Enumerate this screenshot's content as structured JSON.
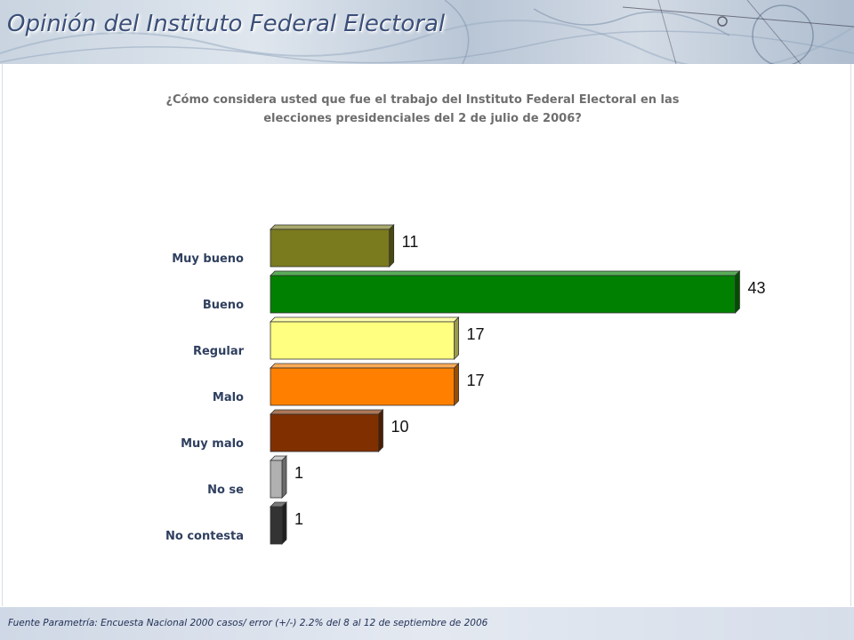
{
  "header": {
    "title": "Opinión del Instituto Federal Electoral"
  },
  "chart_data": {
    "type": "bar",
    "orientation": "horizontal",
    "title": "¿Cómo considera usted que fue el trabajo del Instituto Federal Electoral en las elecciones presidenciales del 2 de julio de 2006?",
    "categories": [
      "Muy bueno",
      "Bueno",
      "Regular",
      "Malo",
      "Muy malo",
      "No se",
      "No contesta"
    ],
    "values": [
      11,
      43,
      17,
      17,
      10,
      1,
      1
    ],
    "colors": [
      "#7a7a1e",
      "#008000",
      "#ffff80",
      "#ff8000",
      "#803000",
      "#b0b0b0",
      "#333333"
    ],
    "xlim": [
      0,
      43
    ],
    "grid": false,
    "legend": "none",
    "data_labels": true
  },
  "footer": {
    "source": "Fuente Parametría: Encuesta Nacional 2000 casos/ error (+/-) 2.2% del 8 al 12 de septiembre de 2006"
  }
}
